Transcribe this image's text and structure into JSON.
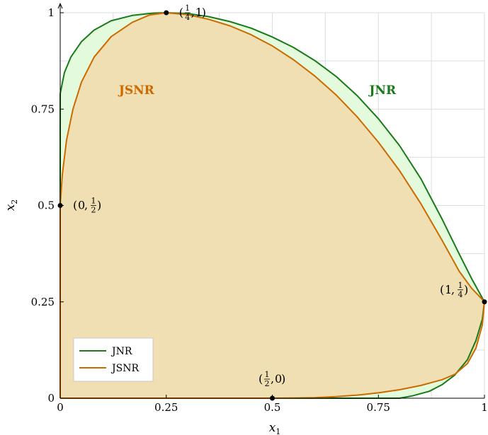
{
  "chart_data": {
    "type": "area",
    "title": "",
    "xlabel": "x",
    "xlabel_sub": "1",
    "ylabel": "x",
    "ylabel_sub": "2",
    "xlim": [
      0,
      1
    ],
    "ylim": [
      0,
      1
    ],
    "grid": true,
    "xticks": [
      0,
      0.25,
      0.5,
      0.75,
      1
    ],
    "yticks": [
      0,
      0.25,
      0.5,
      0.75,
      1
    ],
    "xtick_labels": [
      "0",
      "0.25",
      "0.5",
      "0.75",
      "1"
    ],
    "ytick_labels": [
      "0",
      "0.25",
      "0.5",
      "0.75",
      "1"
    ],
    "legend_position": "bottom-left",
    "series": [
      {
        "name": "JNR",
        "color": "#1a7a1a",
        "fill": "#e3fbdc",
        "points": [
          [
            0,
            0
          ],
          [
            0,
            0.79
          ],
          [
            0.01,
            0.845
          ],
          [
            0.025,
            0.885
          ],
          [
            0.05,
            0.925
          ],
          [
            0.08,
            0.955
          ],
          [
            0.12,
            0.979
          ],
          [
            0.17,
            0.993
          ],
          [
            0.22,
            0.999
          ],
          [
            0.25,
            1.0
          ],
          [
            0.3,
            0.998
          ],
          [
            0.35,
            0.99
          ],
          [
            0.4,
            0.977
          ],
          [
            0.45,
            0.96
          ],
          [
            0.5,
            0.937
          ],
          [
            0.55,
            0.91
          ],
          [
            0.6,
            0.876
          ],
          [
            0.65,
            0.835
          ],
          [
            0.7,
            0.785
          ],
          [
            0.75,
            0.725
          ],
          [
            0.8,
            0.655
          ],
          [
            0.85,
            0.57
          ],
          [
            0.9,
            0.465
          ],
          [
            0.94,
            0.375
          ],
          [
            0.97,
            0.31
          ],
          [
            0.99,
            0.27
          ],
          [
            1.0,
            0.25
          ],
          [
            0.995,
            0.205
          ],
          [
            0.98,
            0.15
          ],
          [
            0.96,
            0.1
          ],
          [
            0.93,
            0.06
          ],
          [
            0.9,
            0.035
          ],
          [
            0.87,
            0.018
          ],
          [
            0.83,
            0.006
          ],
          [
            0.8,
            0.0
          ],
          [
            0,
            0
          ]
        ]
      },
      {
        "name": "JSNR",
        "color": "#cc6a00",
        "fill": "#efdfb2",
        "points": [
          [
            0,
            0
          ],
          [
            0,
            0.5
          ],
          [
            0.005,
            0.58
          ],
          [
            0.015,
            0.67
          ],
          [
            0.03,
            0.75
          ],
          [
            0.05,
            0.82
          ],
          [
            0.08,
            0.885
          ],
          [
            0.12,
            0.938
          ],
          [
            0.17,
            0.975
          ],
          [
            0.21,
            0.994
          ],
          [
            0.25,
            1.0
          ],
          [
            0.3,
            0.995
          ],
          [
            0.35,
            0.983
          ],
          [
            0.4,
            0.966
          ],
          [
            0.45,
            0.943
          ],
          [
            0.5,
            0.914
          ],
          [
            0.55,
            0.878
          ],
          [
            0.6,
            0.836
          ],
          [
            0.65,
            0.787
          ],
          [
            0.7,
            0.73
          ],
          [
            0.75,
            0.664
          ],
          [
            0.8,
            0.59
          ],
          [
            0.85,
            0.505
          ],
          [
            0.9,
            0.41
          ],
          [
            0.94,
            0.33
          ],
          [
            0.97,
            0.285
          ],
          [
            0.99,
            0.262
          ],
          [
            1.0,
            0.25
          ],
          [
            0.995,
            0.19
          ],
          [
            0.98,
            0.13
          ],
          [
            0.96,
            0.09
          ],
          [
            0.93,
            0.062
          ],
          [
            0.9,
            0.048
          ],
          [
            0.85,
            0.033
          ],
          [
            0.8,
            0.022
          ],
          [
            0.75,
            0.014
          ],
          [
            0.7,
            0.008
          ],
          [
            0.65,
            0.004
          ],
          [
            0.6,
            0.0015
          ],
          [
            0.55,
            0.0004
          ],
          [
            0.5,
            0
          ],
          [
            0,
            0
          ]
        ]
      }
    ],
    "region_labels": [
      {
        "text": "JSNR",
        "series": "JSNR",
        "x": 0.18,
        "y": 0.8
      },
      {
        "text": "JNR",
        "series": "JNR",
        "x": 0.76,
        "y": 0.8
      }
    ],
    "points": [
      {
        "x": 0.25,
        "y": 1,
        "num": "1",
        "den": "4",
        "second": "1",
        "pos": "right"
      },
      {
        "x": 0,
        "y": 0.5,
        "first": "0",
        "num": "1",
        "den": "2",
        "pos": "right"
      },
      {
        "x": 1,
        "y": 0.25,
        "first": "1",
        "num": "1",
        "den": "4",
        "pos": "left"
      },
      {
        "x": 0.5,
        "y": 0,
        "num": "1",
        "den": "2",
        "second": "0",
        "pos": "above"
      }
    ]
  }
}
